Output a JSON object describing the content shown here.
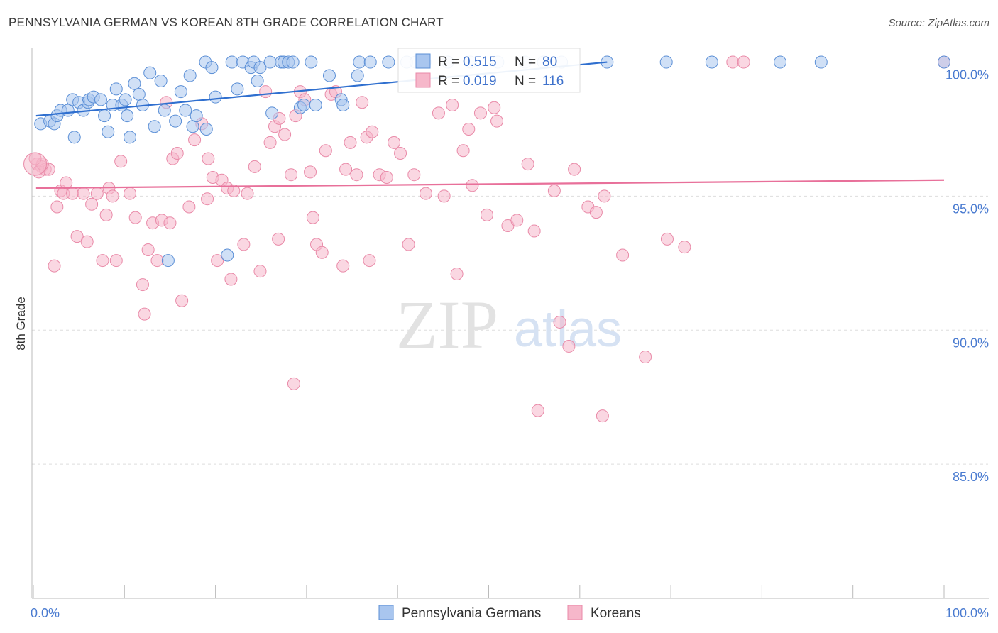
{
  "title": "PENNSYLVANIA GERMAN VS KOREAN 8TH GRADE CORRELATION CHART",
  "source": "Source: ZipAtlas.com",
  "watermark": {
    "zip": "ZIP",
    "atlas": "atlas"
  },
  "legend_box": {
    "rows": [
      {
        "r_label": "R =",
        "r_value": "0.515",
        "n_label": "N =",
        "n_value": "80"
      },
      {
        "r_label": "R =",
        "r_value": "0.019",
        "n_label": "N =",
        "n_value": "116"
      }
    ]
  },
  "bottom_legend": [
    "Pennsylvania Germans",
    "Koreans"
  ],
  "colors": {
    "blue_fill": "#a9c6ef",
    "blue_stroke": "#5b8fd6",
    "blue_line": "#2f6fcf",
    "pink_fill": "#f6b7ca",
    "pink_stroke": "#e98aa8",
    "pink_line": "#e8709a",
    "tick_text": "#4a7bd0",
    "grid": "#dddddd"
  },
  "chart_data": {
    "type": "scatter",
    "title": "PENNSYLVANIA GERMAN VS KOREAN 8TH GRADE CORRELATION CHART",
    "xlabel": "",
    "ylabel": "8th Grade",
    "xlim": [
      0,
      100
    ],
    "ylim": [
      80.5,
      100.8
    ],
    "x_ticks": [
      "0.0%",
      "100.0%"
    ],
    "y_ticks": [
      {
        "value": 100,
        "label": "100.0%"
      },
      {
        "value": 95,
        "label": "95.0%"
      },
      {
        "value": 90,
        "label": "90.0%"
      },
      {
        "value": 85,
        "label": "85.0%"
      }
    ],
    "grid": true,
    "legend_position": "bottom",
    "series": [
      {
        "name": "Pennsylvania Germans",
        "r": 0.515,
        "n": 80,
        "trend": [
          [
            0.3,
            98.0
          ],
          [
            63.0,
            100.0
          ]
        ],
        "points": [
          [
            0.8,
            97.7
          ],
          [
            1.8,
            97.8
          ],
          [
            2.3,
            97.7
          ],
          [
            2.6,
            98.0
          ],
          [
            3.0,
            98.2
          ],
          [
            3.8,
            98.2
          ],
          [
            4.3,
            98.6
          ],
          [
            4.5,
            97.2
          ],
          [
            5.0,
            98.5
          ],
          [
            5.5,
            98.2
          ],
          [
            6.0,
            98.5
          ],
          [
            6.1,
            98.6
          ],
          [
            6.6,
            98.7
          ],
          [
            7.4,
            98.6
          ],
          [
            7.8,
            98.0
          ],
          [
            8.2,
            97.4
          ],
          [
            8.7,
            98.4
          ],
          [
            9.1,
            99.0
          ],
          [
            9.7,
            98.4
          ],
          [
            10.1,
            98.6
          ],
          [
            10.6,
            97.2
          ],
          [
            11.1,
            99.2
          ],
          [
            11.6,
            98.8
          ],
          [
            12.0,
            98.4
          ],
          [
            12.8,
            99.6
          ],
          [
            13.3,
            97.6
          ],
          [
            14.0,
            99.3
          ],
          [
            14.4,
            98.2
          ],
          [
            15.6,
            97.8
          ],
          [
            16.2,
            98.9
          ],
          [
            16.7,
            98.2
          ],
          [
            17.2,
            99.5
          ],
          [
            17.5,
            97.6
          ],
          [
            17.9,
            98.0
          ],
          [
            18.9,
            100.0
          ],
          [
            19.6,
            99.8
          ],
          [
            20.0,
            98.7
          ],
          [
            21.3,
            92.8
          ],
          [
            21.8,
            100.0
          ],
          [
            22.4,
            99.0
          ],
          [
            23.0,
            100.0
          ],
          [
            23.9,
            99.8
          ],
          [
            24.2,
            100.0
          ],
          [
            24.6,
            99.3
          ],
          [
            24.9,
            99.8
          ],
          [
            26.0,
            100.0
          ],
          [
            26.2,
            98.1
          ],
          [
            27.2,
            100.0
          ],
          [
            27.5,
            100.0
          ],
          [
            28.0,
            100.0
          ],
          [
            28.5,
            100.0
          ],
          [
            29.3,
            98.3
          ],
          [
            29.7,
            98.4
          ],
          [
            30.5,
            100.0
          ],
          [
            32.5,
            99.5
          ],
          [
            33.8,
            98.6
          ],
          [
            34.0,
            98.4
          ],
          [
            35.6,
            99.5
          ],
          [
            35.8,
            100.0
          ],
          [
            37.0,
            100.0
          ],
          [
            39.0,
            100.0
          ],
          [
            41.0,
            100.0
          ],
          [
            42.0,
            100.0
          ],
          [
            43.0,
            100.0
          ],
          [
            45.5,
            100.0
          ],
          [
            48.0,
            100.0
          ],
          [
            51.0,
            100.0
          ],
          [
            54.0,
            100.0
          ],
          [
            56.0,
            100.0
          ],
          [
            58.0,
            100.0
          ],
          [
            63.0,
            100.0
          ],
          [
            69.5,
            100.0
          ],
          [
            74.5,
            100.0
          ],
          [
            82.0,
            100.0
          ],
          [
            86.5,
            100.0
          ],
          [
            100.0,
            100.0
          ],
          [
            19.0,
            97.5
          ],
          [
            14.8,
            92.6
          ],
          [
            31.0,
            98.4
          ],
          [
            10.3,
            98.0
          ]
        ]
      },
      {
        "name": "Koreans",
        "r": 0.019,
        "n": 116,
        "trend": [
          [
            0.3,
            95.3
          ],
          [
            100.0,
            95.6
          ]
        ],
        "points": [
          [
            0.4,
            96.2
          ],
          [
            0.9,
            96.1
          ],
          [
            1.3,
            96.0
          ],
          [
            1.7,
            96.0
          ],
          [
            2.3,
            92.4
          ],
          [
            2.6,
            94.6
          ],
          [
            3.0,
            95.2
          ],
          [
            3.3,
            95.1
          ],
          [
            3.6,
            95.5
          ],
          [
            4.3,
            95.1
          ],
          [
            4.8,
            93.5
          ],
          [
            5.5,
            95.1
          ],
          [
            5.9,
            93.3
          ],
          [
            6.4,
            94.7
          ],
          [
            7.0,
            95.1
          ],
          [
            7.6,
            92.6
          ],
          [
            8.3,
            95.3
          ],
          [
            8.7,
            95.0
          ],
          [
            9.1,
            92.6
          ],
          [
            9.6,
            96.3
          ],
          [
            10.6,
            95.1
          ],
          [
            11.2,
            94.2
          ],
          [
            12.0,
            91.7
          ],
          [
            12.6,
            93.0
          ],
          [
            13.1,
            94.0
          ],
          [
            13.6,
            92.6
          ],
          [
            14.1,
            94.1
          ],
          [
            14.6,
            98.5
          ],
          [
            15.3,
            96.4
          ],
          [
            15.8,
            96.6
          ],
          [
            16.3,
            91.1
          ],
          [
            17.1,
            94.6
          ],
          [
            17.7,
            97.1
          ],
          [
            18.5,
            97.7
          ],
          [
            19.2,
            96.4
          ],
          [
            19.7,
            95.7
          ],
          [
            20.2,
            92.6
          ],
          [
            20.7,
            95.6
          ],
          [
            21.3,
            95.3
          ],
          [
            22.0,
            95.2
          ],
          [
            23.1,
            93.2
          ],
          [
            23.5,
            95.1
          ],
          [
            24.3,
            96.1
          ],
          [
            24.9,
            92.2
          ],
          [
            25.5,
            98.9
          ],
          [
            26.0,
            97.0
          ],
          [
            26.5,
            97.6
          ],
          [
            27.0,
            97.9
          ],
          [
            27.6,
            97.3
          ],
          [
            28.3,
            95.8
          ],
          [
            28.8,
            98.0
          ],
          [
            29.3,
            98.9
          ],
          [
            29.8,
            98.6
          ],
          [
            30.4,
            95.9
          ],
          [
            31.1,
            93.2
          ],
          [
            31.7,
            92.9
          ],
          [
            32.1,
            96.7
          ],
          [
            32.7,
            98.8
          ],
          [
            33.2,
            98.9
          ],
          [
            34.0,
            92.4
          ],
          [
            34.8,
            97.0
          ],
          [
            35.5,
            95.8
          ],
          [
            36.1,
            98.5
          ],
          [
            36.6,
            97.2
          ],
          [
            37.2,
            97.4
          ],
          [
            38.0,
            95.8
          ],
          [
            38.8,
            95.7
          ],
          [
            39.6,
            97.0
          ],
          [
            40.3,
            96.6
          ],
          [
            41.8,
            95.8
          ],
          [
            43.1,
            95.1
          ],
          [
            45.1,
            95.0
          ],
          [
            46.0,
            98.4
          ],
          [
            46.5,
            92.1
          ],
          [
            47.2,
            96.7
          ],
          [
            48.2,
            95.4
          ],
          [
            49.1,
            98.1
          ],
          [
            49.8,
            94.3
          ],
          [
            50.6,
            98.3
          ],
          [
            50.9,
            97.8
          ],
          [
            52.1,
            93.9
          ],
          [
            53.1,
            94.1
          ],
          [
            54.3,
            96.2
          ],
          [
            55.0,
            93.7
          ],
          [
            57.2,
            95.2
          ],
          [
            57.8,
            90.3
          ],
          [
            58.8,
            89.4
          ],
          [
            59.4,
            96.0
          ],
          [
            60.9,
            94.6
          ],
          [
            61.8,
            94.4
          ],
          [
            62.7,
            95.0
          ],
          [
            64.7,
            92.8
          ],
          [
            67.2,
            89.0
          ],
          [
            69.6,
            93.4
          ],
          [
            71.5,
            93.1
          ],
          [
            76.8,
            100.0
          ],
          [
            78.0,
            100.0
          ],
          [
            100.0,
            100.0
          ],
          [
            0.6,
            95.9
          ],
          [
            1.0,
            96.2
          ],
          [
            0.2,
            96.4
          ],
          [
            28.6,
            88.0
          ],
          [
            55.4,
            87.0
          ],
          [
            62.5,
            86.8
          ],
          [
            12.2,
            90.6
          ],
          [
            19.1,
            94.9
          ],
          [
            26.9,
            93.4
          ],
          [
            34.3,
            96.0
          ],
          [
            41.2,
            93.2
          ],
          [
            44.5,
            98.1
          ],
          [
            30.7,
            94.2
          ],
          [
            21.7,
            91.9
          ],
          [
            8.0,
            94.3
          ],
          [
            15.0,
            94.0
          ],
          [
            36.9,
            92.6
          ],
          [
            47.8,
            97.5
          ]
        ]
      }
    ]
  }
}
